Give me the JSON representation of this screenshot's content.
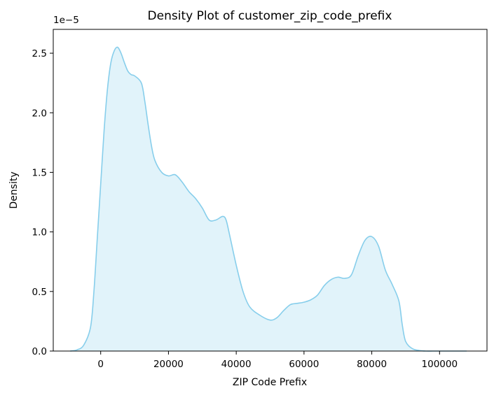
{
  "chart_data": {
    "type": "area",
    "title": "Density Plot of customer_zip_code_prefix",
    "xlabel": "ZIP Code Prefix",
    "ylabel": "Density",
    "y_scale_label": "1e−5",
    "xlim": [
      -14000,
      114000
    ],
    "ylim": [
      0,
      2.7
    ],
    "x_ticks": [
      0,
      20000,
      40000,
      60000,
      80000,
      100000
    ],
    "x_tick_labels": [
      "0",
      "20000",
      "40000",
      "60000",
      "80000",
      "100000"
    ],
    "y_ticks": [
      0,
      0.5,
      1.0,
      1.5,
      2.0,
      2.5
    ],
    "y_tick_labels": [
      "0.0",
      "0.5",
      "1.0",
      "1.5",
      "2.0",
      "2.5"
    ],
    "grid": false,
    "colors": {
      "line": "#87ceeb",
      "fill": "#87ceeb",
      "fill_opacity": 0.25
    },
    "series": [
      {
        "x": [
          -9000,
          -7000,
          -5000,
          -3000,
          -2000,
          -1000,
          0,
          1000,
          2000,
          3000,
          4000,
          5000,
          6000,
          7000,
          8000,
          9000,
          10000,
          12000,
          13000,
          14000,
          15000,
          16000,
          18000,
          20000,
          22000,
          24000,
          26000,
          28000,
          30000,
          32000,
          34000,
          36000,
          37000,
          38000,
          40000,
          42000,
          44000,
          47000,
          50000,
          52000,
          54000,
          56000,
          58000,
          60000,
          62000,
          64000,
          66000,
          68000,
          70000,
          72000,
          74000,
          76000,
          78000,
          80000,
          82000,
          84000,
          86000,
          88000,
          89000,
          90000,
          92000,
          94000,
          96000,
          98000,
          100000,
          102000,
          104000,
          106000,
          108000
        ],
        "y": [
          0,
          0.01,
          0.05,
          0.2,
          0.5,
          0.95,
          1.4,
          1.85,
          2.2,
          2.42,
          2.52,
          2.55,
          2.5,
          2.42,
          2.35,
          2.32,
          2.31,
          2.25,
          2.1,
          1.9,
          1.72,
          1.6,
          1.5,
          1.47,
          1.48,
          1.42,
          1.34,
          1.28,
          1.2,
          1.1,
          1.1,
          1.13,
          1.1,
          0.98,
          0.72,
          0.5,
          0.37,
          0.3,
          0.26,
          0.28,
          0.34,
          0.39,
          0.4,
          0.41,
          0.43,
          0.47,
          0.55,
          0.6,
          0.62,
          0.61,
          0.64,
          0.8,
          0.93,
          0.96,
          0.88,
          0.68,
          0.56,
          0.42,
          0.22,
          0.08,
          0.02,
          0.005,
          0,
          0,
          0,
          0,
          0,
          0,
          0
        ]
      }
    ]
  }
}
